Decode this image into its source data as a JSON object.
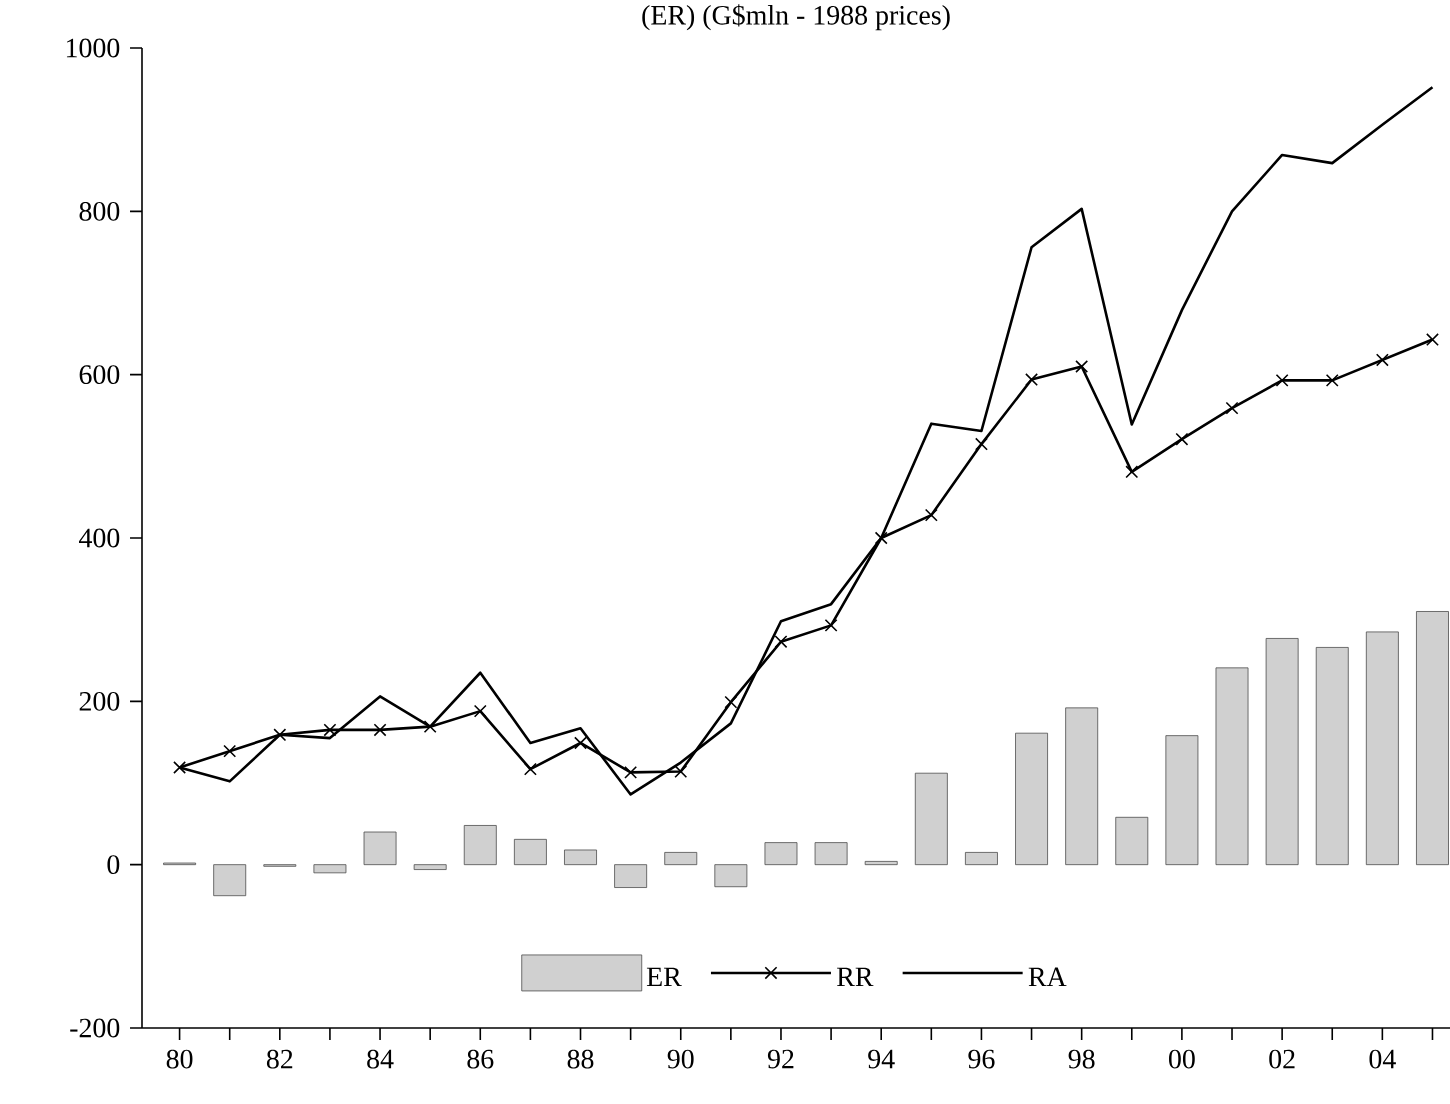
{
  "chart_data": {
    "type": "line",
    "title": "(ER) (G$mln - 1988 prices)",
    "x": [
      1980,
      1981,
      1982,
      1983,
      1984,
      1985,
      1986,
      1987,
      1988,
      1989,
      1990,
      1991,
      1992,
      1993,
      1994,
      1995,
      1996,
      1997,
      1998,
      1999,
      2000,
      2001,
      2002,
      2003,
      2004,
      2005
    ],
    "series": [
      {
        "name": "ER",
        "type": "bar",
        "color": "#d0d0d0",
        "values": [
          2,
          -38,
          -2,
          -10,
          40,
          -6,
          48,
          31,
          18,
          -28,
          15,
          -27,
          27,
          27,
          4,
          112,
          15,
          161,
          192,
          58,
          158,
          241,
          277,
          266,
          285,
          310
        ]
      },
      {
        "name": "RR",
        "color": "#000000",
        "marker": "cross",
        "values": [
          119,
          139,
          159,
          165,
          165,
          169,
          188,
          117,
          149,
          113,
          114,
          199,
          273,
          293,
          400,
          428,
          515,
          594,
          610,
          481,
          521,
          559,
          593,
          593,
          618,
          643
        ]
      },
      {
        "name": "RA",
        "color": "#000000",
        "values": [
          119,
          102,
          159,
          155,
          206,
          169,
          235,
          149,
          167,
          86,
          125,
          173,
          298,
          319,
          400,
          540,
          531,
          756,
          803,
          539,
          679,
          800,
          869,
          859,
          906,
          952
        ]
      }
    ],
    "xlim": [
      1979.25,
      2005.35
    ],
    "ylim": [
      -200,
      1000
    ],
    "yticks": [
      -200,
      0,
      200,
      400,
      600,
      800,
      1000
    ],
    "xticks": [
      {
        "value": 1980,
        "label": "80"
      },
      {
        "value": 1981,
        "label": null
      },
      {
        "value": 1982,
        "label": "82"
      },
      {
        "value": 1983,
        "label": null
      },
      {
        "value": 1984,
        "label": "84"
      },
      {
        "value": 1985,
        "label": null
      },
      {
        "value": 1986,
        "label": "86"
      },
      {
        "value": 1987,
        "label": null
      },
      {
        "value": 1988,
        "label": "88"
      },
      {
        "value": 1989,
        "label": null
      },
      {
        "value": 1990,
        "label": "90"
      },
      {
        "value": 1991,
        "label": null
      },
      {
        "value": 1992,
        "label": "92"
      },
      {
        "value": 1993,
        "label": null
      },
      {
        "value": 1994,
        "label": "94"
      },
      {
        "value": 1995,
        "label": null
      },
      {
        "value": 1996,
        "label": "96"
      },
      {
        "value": 1997,
        "label": null
      },
      {
        "value": 1998,
        "label": "98"
      },
      {
        "value": 1999,
        "label": null
      },
      {
        "value": 2000,
        "label": "00"
      },
      {
        "value": 2001,
        "label": null
      },
      {
        "value": 2002,
        "label": "02"
      },
      {
        "value": 2003,
        "label": null
      },
      {
        "value": 2004,
        "label": "04"
      },
      {
        "value": 2005,
        "label": null
      }
    ],
    "legend": "bottom",
    "grid": false
  }
}
